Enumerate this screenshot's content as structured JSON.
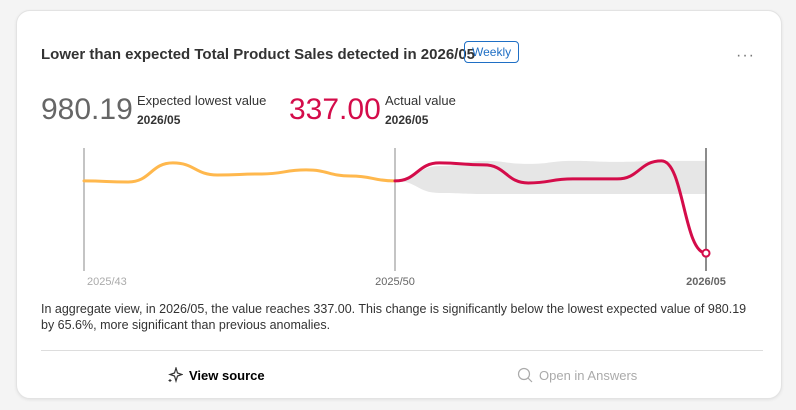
{
  "card": {
    "title": "Lower than expected Total Product Sales detected in 2026/05",
    "badge": "Weekly",
    "more_icon": "ellipsis-icon",
    "expected": {
      "value": "980.19",
      "label": "Expected lowest value",
      "period": "2026/05"
    },
    "actual": {
      "value": "337.00",
      "label": "Actual value",
      "period": "2026/05"
    },
    "description": "In aggregate view, in 2026/05, the value reaches 337.00. This change is significantly below the lowest expected value of 980.19 by 65.6%, more significant than previous anomalies.",
    "actions": {
      "view_source": "View source",
      "view_source_icon": "sparkle-icon",
      "open_answers": "Open in Answers",
      "open_answers_icon": "search-sparkle-icon"
    }
  },
  "colors": {
    "history": "#ffb84d",
    "current": "#d40c4a",
    "band": "#e6e6e6"
  },
  "chart_data": {
    "type": "line",
    "x": [
      "2025/43",
      "2025/44",
      "2025/45",
      "2025/46",
      "2025/47",
      "2025/48",
      "2025/49",
      "2025/50",
      "2025/51",
      "2025/52",
      "2026/01",
      "2026/02",
      "2026/03",
      "2026/04",
      "2026/05"
    ],
    "tick_labels": [
      "2025/43",
      "2025/50",
      "2026/05"
    ],
    "series": [
      {
        "values": [
          1122,
          1111,
          1318,
          1187,
          1198,
          1242,
          1176,
          1122,
          null,
          null,
          null,
          null,
          null,
          null,
          null
        ]
      },
      {
        "values": [
          null,
          null,
          null,
          null,
          null,
          null,
          null,
          1122,
          1318,
          1296,
          1100,
          1144,
          1144,
          1340,
          337
        ]
      }
    ],
    "expected_band": {
      "upper": [
        null,
        null,
        null,
        null,
        null,
        null,
        null,
        1122,
        1285,
        1340,
        1307,
        1340,
        1329,
        1340,
        1340
      ],
      "lower": [
        null,
        null,
        null,
        null,
        null,
        null,
        null,
        1122,
        991,
        980,
        980,
        980,
        980,
        980,
        980
      ]
    },
    "ylim": [
      230,
      1480
    ],
    "grid": false
  }
}
